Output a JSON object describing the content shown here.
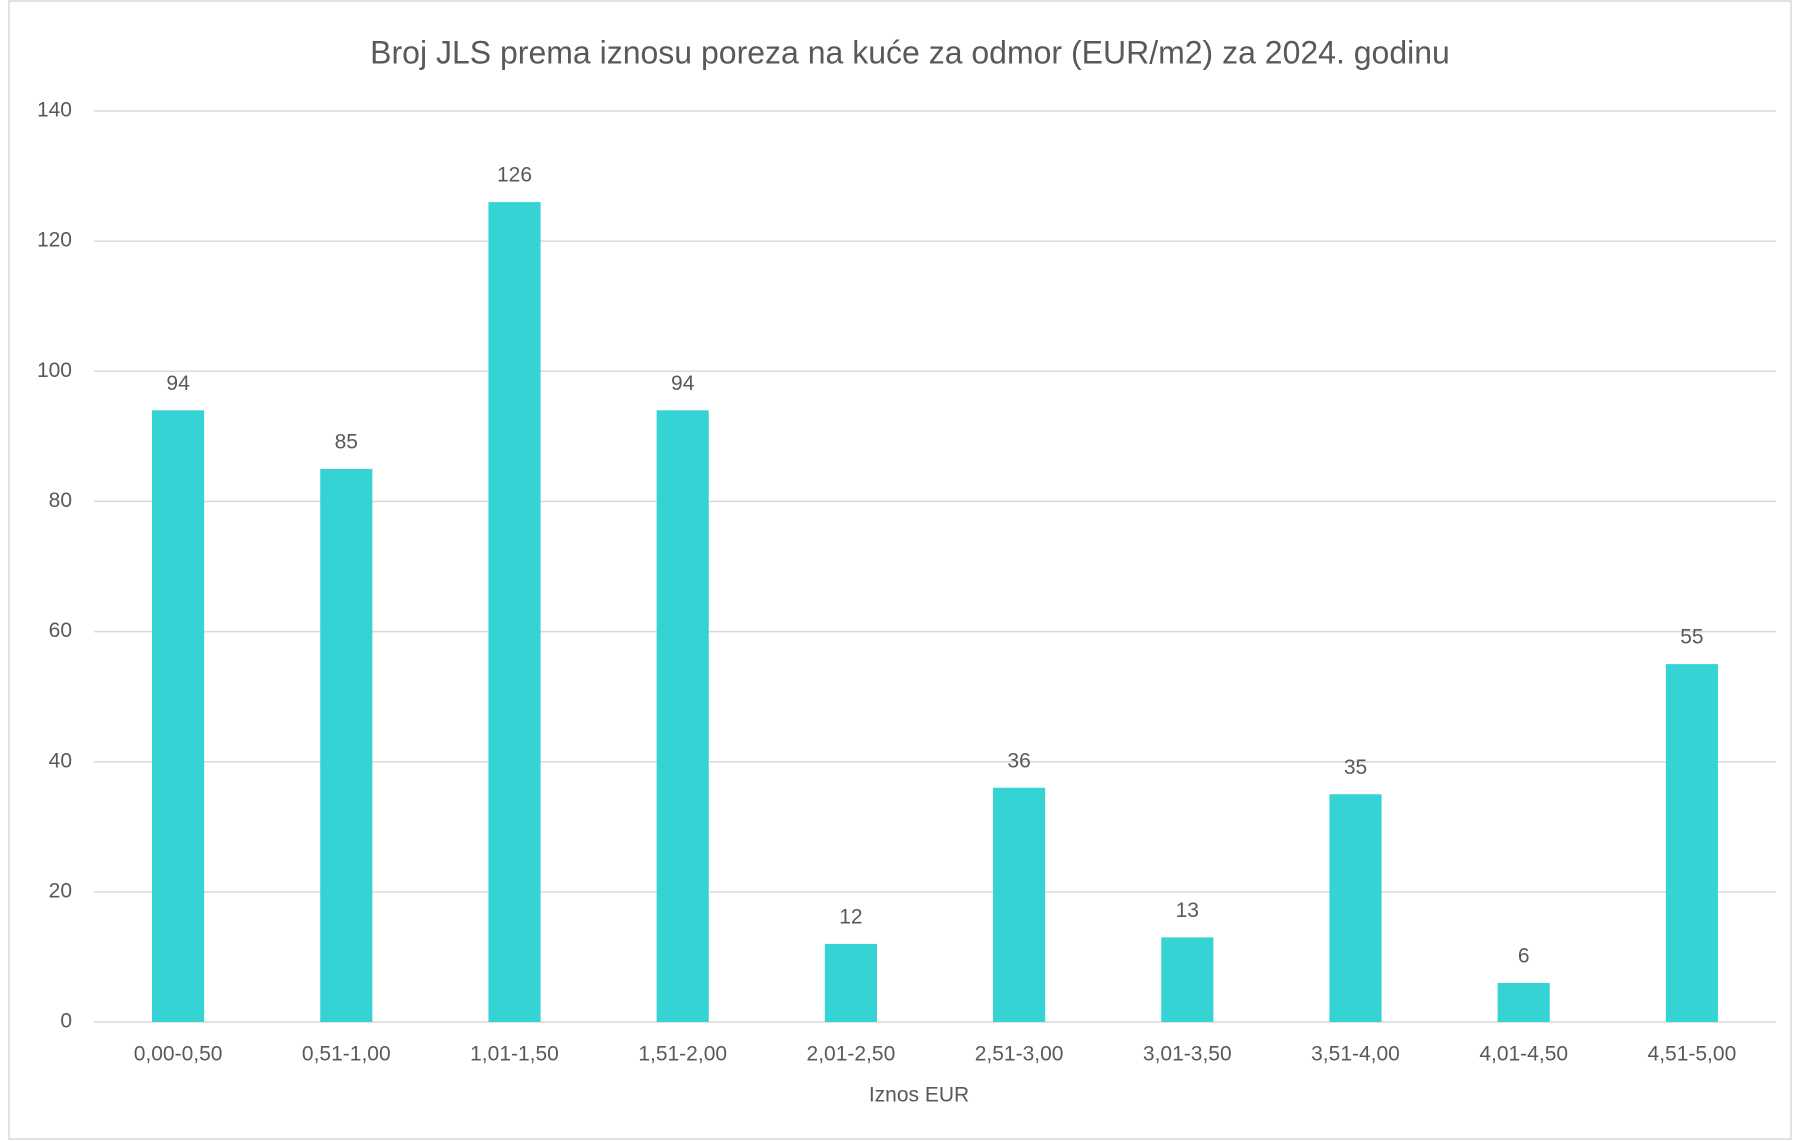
{
  "chart_data": {
    "type": "bar",
    "title": "Broj JLS prema iznosu poreza na kuće za odmor (EUR/m2) za 2024. godinu",
    "x_label": "Iznos EUR",
    "categories": [
      "0,00-0,50",
      "0,51-1,00",
      "1,01-1,50",
      "1,51-2,00",
      "2,01-2,50",
      "2,51-3,00",
      "3,01-3,50",
      "3,51-4,00",
      "4,01-4,50",
      "4,51-5,00"
    ],
    "values": [
      94,
      85,
      126,
      94,
      12,
      36,
      13,
      35,
      6,
      55
    ],
    "color": "#36d3d5",
    "ylim": [
      0,
      140
    ],
    "yticks": [
      0,
      20,
      40,
      60,
      80,
      100,
      120,
      140
    ],
    "grid": true
  }
}
